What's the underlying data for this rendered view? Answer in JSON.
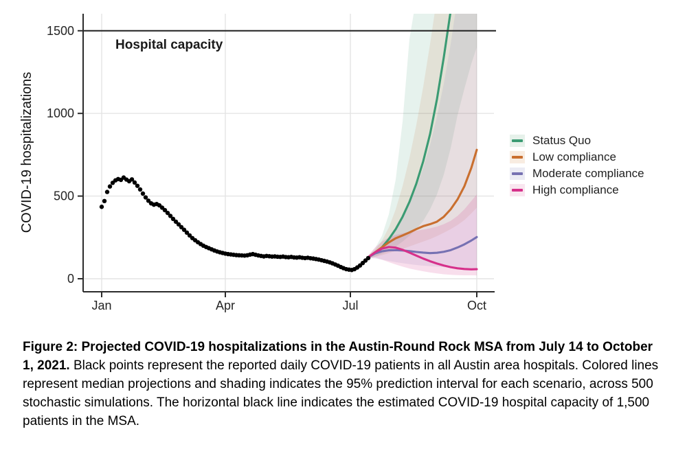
{
  "figure": {
    "caption_bold": "Figure 2: Projected COVID-19 hospitalizations in the Austin-Round Rock MSA from July 14 to October 1, 2021.",
    "caption_regular": "Black points represent the reported daily COVID-19 patients in all Austin area hospitals. Colored lines represent median projections and shading indicates the 95% prediction interval for each scenario, across 500 stochastic simulations. The horizontal black line indicates the estimated COVID-19 hospital capacity of 1,500 patients in the MSA."
  },
  "chart_data": {
    "type": "line",
    "title": "",
    "xlabel": "",
    "ylabel": "COVID-19 hospitalizations",
    "x_tick_labels": [
      "Jan",
      "Apr",
      "Jul",
      "Oct"
    ],
    "x_tick_days": [
      0,
      90,
      181,
      273
    ],
    "y_ticks": [
      0,
      500,
      1000,
      1500
    ],
    "ylim": [
      0,
      1603
    ],
    "grid": true,
    "legend_position": "right",
    "capacity_line": {
      "label": "Hospital capacity",
      "value": 1500,
      "color": "#2b2b2b"
    },
    "observed": {
      "name": "Reported daily COVID-19 patients",
      "color": "#000000",
      "points": [
        [
          0,
          435
        ],
        [
          2,
          470
        ],
        [
          4,
          525
        ],
        [
          6,
          558
        ],
        [
          8,
          580
        ],
        [
          10,
          595
        ],
        [
          12,
          603
        ],
        [
          14,
          598
        ],
        [
          16,
          612
        ],
        [
          18,
          600
        ],
        [
          20,
          590
        ],
        [
          22,
          601
        ],
        [
          24,
          582
        ],
        [
          26,
          562
        ],
        [
          28,
          540
        ],
        [
          30,
          515
        ],
        [
          32,
          492
        ],
        [
          34,
          472
        ],
        [
          36,
          456
        ],
        [
          38,
          448
        ],
        [
          40,
          452
        ],
        [
          42,
          444
        ],
        [
          44,
          430
        ],
        [
          46,
          415
        ],
        [
          48,
          398
        ],
        [
          50,
          380
        ],
        [
          52,
          362
        ],
        [
          54,
          345
        ],
        [
          56,
          329
        ],
        [
          58,
          312
        ],
        [
          60,
          296
        ],
        [
          62,
          279
        ],
        [
          64,
          262
        ],
        [
          66,
          246
        ],
        [
          68,
          233
        ],
        [
          70,
          221
        ],
        [
          72,
          210
        ],
        [
          74,
          200
        ],
        [
          76,
          192
        ],
        [
          78,
          185
        ],
        [
          80,
          178
        ],
        [
          82,
          171
        ],
        [
          84,
          165
        ],
        [
          86,
          160
        ],
        [
          88,
          156
        ],
        [
          90,
          152
        ],
        [
          92,
          149
        ],
        [
          94,
          147
        ],
        [
          96,
          145
        ],
        [
          98,
          143
        ],
        [
          100,
          142
        ],
        [
          102,
          141
        ],
        [
          104,
          140
        ],
        [
          106,
          142
        ],
        [
          108,
          146
        ],
        [
          110,
          149
        ],
        [
          112,
          145
        ],
        [
          114,
          141
        ],
        [
          116,
          138
        ],
        [
          118,
          135
        ],
        [
          120,
          138
        ],
        [
          122,
          136
        ],
        [
          124,
          134
        ],
        [
          126,
          135
        ],
        [
          128,
          133
        ],
        [
          130,
          132
        ],
        [
          132,
          134
        ],
        [
          134,
          131
        ],
        [
          136,
          130
        ],
        [
          138,
          132
        ],
        [
          140,
          129
        ],
        [
          142,
          128
        ],
        [
          144,
          130
        ],
        [
          146,
          127
        ],
        [
          148,
          125
        ],
        [
          150,
          127
        ],
        [
          152,
          124
        ],
        [
          154,
          122
        ],
        [
          156,
          119
        ],
        [
          158,
          116
        ],
        [
          160,
          112
        ],
        [
          162,
          108
        ],
        [
          164,
          104
        ],
        [
          166,
          99
        ],
        [
          168,
          93
        ],
        [
          170,
          86
        ],
        [
          172,
          79
        ],
        [
          174,
          71
        ],
        [
          176,
          64
        ],
        [
          178,
          58
        ],
        [
          180,
          55
        ],
        [
          182,
          53
        ],
        [
          184,
          58
        ],
        [
          186,
          68
        ],
        [
          188,
          80
        ],
        [
          190,
          95
        ],
        [
          192,
          110
        ],
        [
          194,
          125
        ]
      ]
    },
    "series": [
      {
        "name": "Status Quo",
        "color": "#3b9b73",
        "tint": "#e6f1ea",
        "ribbon_opacity": 0.13,
        "days": [
          194,
          199,
          204,
          209,
          214,
          219,
          224,
          229,
          234,
          239,
          244,
          249,
          254,
          256
        ],
        "median": [
          130,
          155,
          190,
          240,
          300,
          375,
          465,
          575,
          710,
          875,
          1085,
          1340,
          1620,
          1760
        ],
        "ribbon_days": [
          194,
          199,
          204,
          209,
          214,
          219,
          224,
          229,
          234,
          239,
          244,
          249,
          254,
          259,
          264,
          269,
          273
        ],
        "lower": [
          125,
          135,
          150,
          170,
          195,
          225,
          260,
          300,
          350,
          420,
          510,
          630,
          790,
          990,
          1150,
          1300,
          1400
        ],
        "upper": [
          140,
          185,
          260,
          390,
          600,
          950,
          1450,
          1700,
          1700,
          1700,
          1700,
          1700,
          1700,
          1700,
          1700,
          1700,
          1700
        ]
      },
      {
        "name": "Low compliance",
        "color": "#c96f2f",
        "tint": "#f8ece1",
        "ribbon_opacity": 0.12,
        "days": [
          194,
          199,
          204,
          209,
          214,
          219,
          224,
          229,
          234,
          239,
          244,
          249,
          254,
          259,
          264,
          269,
          273
        ],
        "median": [
          130,
          160,
          190,
          220,
          245,
          262,
          280,
          300,
          318,
          330,
          345,
          375,
          420,
          480,
          560,
          670,
          780
        ],
        "ribbon_days": [
          194,
          199,
          204,
          209,
          214,
          219,
          224,
          229,
          234,
          239,
          244,
          249,
          254,
          259,
          264,
          269,
          273
        ],
        "lower": [
          125,
          132,
          142,
          155,
          168,
          180,
          195,
          210,
          225,
          240,
          258,
          278,
          300,
          325,
          355,
          395,
          430
        ],
        "upper": [
          140,
          175,
          230,
          310,
          420,
          560,
          730,
          930,
          1160,
          1420,
          1700,
          1700,
          1700,
          1700,
          1700,
          1700,
          1700
        ]
      },
      {
        "name": "Moderate compliance",
        "color": "#7671b2",
        "tint": "#ebebf4",
        "ribbon_opacity": 0.12,
        "days": [
          194,
          199,
          204,
          209,
          214,
          219,
          224,
          229,
          234,
          239,
          244,
          249,
          254,
          259,
          264,
          269,
          273
        ],
        "median": [
          130,
          153,
          166,
          172,
          173,
          171,
          167,
          162,
          158,
          155,
          157,
          163,
          173,
          189,
          208,
          231,
          252
        ],
        "ribbon_days": [
          194,
          199,
          204,
          209,
          214,
          219,
          224,
          229,
          234,
          239,
          244,
          249,
          254,
          259,
          264,
          269,
          273
        ],
        "lower": [
          125,
          122,
          115,
          108,
          100,
          94,
          88,
          83,
          79,
          76,
          73,
          70,
          68,
          66,
          64,
          62,
          60
        ],
        "upper": [
          138,
          165,
          200,
          245,
          300,
          370,
          450,
          550,
          670,
          810,
          980,
          1180,
          1420,
          1700,
          1700,
          1700,
          1700
        ]
      },
      {
        "name": "High compliance",
        "color": "#d6308a",
        "tint": "#f9e6ef",
        "ribbon_opacity": 0.16,
        "days": [
          194,
          199,
          204,
          209,
          214,
          219,
          224,
          229,
          234,
          239,
          244,
          249,
          254,
          259,
          264,
          269,
          273
        ],
        "median": [
          130,
          160,
          182,
          192,
          188,
          175,
          158,
          140,
          122,
          106,
          92,
          80,
          70,
          63,
          59,
          57,
          58
        ],
        "ribbon_days": [
          194,
          199,
          204,
          209,
          214,
          219,
          224,
          229,
          234,
          239,
          244,
          249,
          254,
          259,
          264,
          269,
          273
        ],
        "lower": [
          124,
          128,
          115,
          100,
          86,
          73,
          62,
          53,
          45,
          38,
          32,
          27,
          24,
          22,
          21,
          21,
          20
        ],
        "upper": [
          140,
          190,
          225,
          250,
          265,
          275,
          283,
          290,
          297,
          305,
          315,
          330,
          350,
          380,
          420,
          470,
          510
        ]
      }
    ],
    "style": {
      "grid_color": "#e4e4e4",
      "axis_color": "#2b2b2b",
      "tick_label_color": "#242424",
      "point_radius": 3.2
    }
  }
}
